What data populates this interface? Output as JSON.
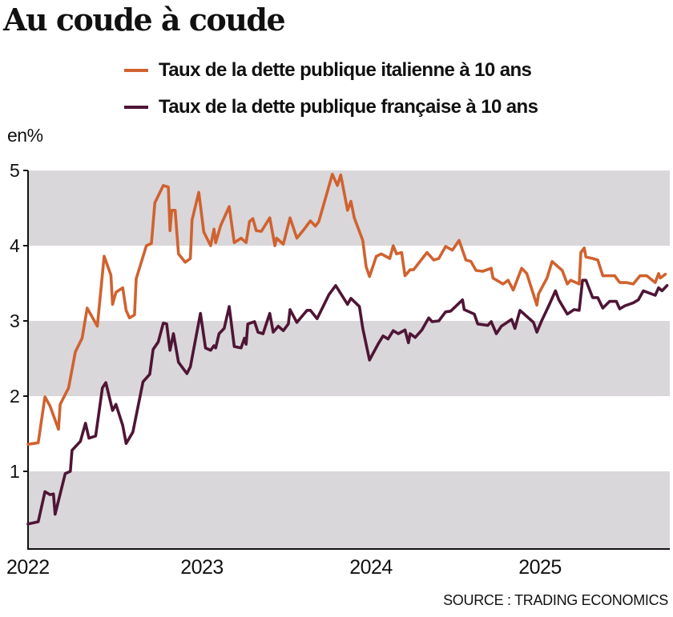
{
  "chart_data": {
    "type": "line",
    "title": "Au coude à coude",
    "ylabel": "en%",
    "ylim": [
      0,
      5
    ],
    "xlim": [
      2022,
      2025.78
    ],
    "yticks": [
      "1",
      "2",
      "3",
      "4",
      "5"
    ],
    "xticks": [
      "2022",
      "2023",
      "2024",
      "2025"
    ],
    "grid": "alternating horizontal bands",
    "legend_position": "top-right",
    "source": "SOURCE : TRADING ECONOMICS",
    "colors": {
      "italy": "#d0622f",
      "france": "#4f1535",
      "band": "#d9d7da"
    },
    "series": [
      {
        "name": "Taux de la dette publique italienne à 10 ans",
        "x": [
          2022.0,
          2022.06,
          2022.1,
          2022.13,
          2022.18,
          2022.19,
          2022.24,
          2022.28,
          2022.32,
          2022.35,
          2022.41,
          2022.45,
          2022.49,
          2022.5,
          2022.52,
          2022.56,
          2022.58,
          2022.6,
          2022.63,
          2022.64,
          2022.7,
          2022.73,
          2022.75,
          2022.8,
          2022.83,
          2022.84,
          2022.85,
          2022.87,
          2022.89,
          2022.93,
          2022.96,
          2022.97,
          2023.01,
          2023.04,
          2023.08,
          2023.1,
          2023.11,
          2023.14,
          2023.19,
          2023.22,
          2023.26,
          2023.29,
          2023.31,
          2023.33,
          2023.35,
          2023.38,
          2023.43,
          2023.46,
          2023.47,
          2023.51,
          2023.55,
          2023.59,
          2023.63,
          2023.67,
          2023.7,
          2023.72,
          2023.8,
          2023.83,
          2023.85,
          2023.89,
          2023.91,
          2023.93,
          2023.98,
          2024.0,
          2024.02,
          2024.06,
          2024.09,
          2024.14,
          2024.16,
          2024.18,
          2024.21,
          2024.23,
          2024.26,
          2024.28,
          2024.36,
          2024.4,
          2024.43,
          2024.47,
          2024.51,
          2024.55,
          2024.59,
          2024.62,
          2024.65,
          2024.69,
          2024.74,
          2024.75,
          2024.81,
          2024.84,
          2024.87,
          2024.92,
          2024.95,
          2025.01,
          2025.02,
          2025.07,
          2025.1,
          2025.16,
          2025.19,
          2025.21,
          2025.26,
          2025.27,
          2025.29,
          2025.3,
          2025.34,
          2025.37,
          2025.4,
          2025.47,
          2025.5,
          2025.54,
          2025.58,
          2025.62,
          2025.66,
          2025.71,
          2025.73,
          2025.74,
          2025.77
        ],
        "y": [
          1.36,
          1.38,
          1.99,
          1.87,
          1.56,
          1.89,
          2.11,
          2.59,
          2.77,
          3.17,
          2.93,
          3.86,
          3.61,
          3.22,
          3.38,
          3.44,
          3.14,
          3.04,
          3.08,
          3.56,
          4.0,
          4.03,
          4.57,
          4.8,
          4.78,
          4.2,
          4.47,
          4.47,
          3.89,
          3.78,
          3.83,
          4.34,
          4.71,
          4.18,
          4.0,
          4.22,
          4.04,
          4.27,
          4.52,
          4.04,
          4.1,
          4.04,
          4.32,
          4.36,
          4.2,
          4.19,
          4.37,
          4.0,
          4.1,
          4.02,
          4.37,
          4.1,
          4.21,
          4.33,
          4.26,
          4.32,
          4.95,
          4.8,
          4.94,
          4.47,
          4.59,
          4.37,
          4.07,
          3.72,
          3.59,
          3.86,
          3.89,
          3.83,
          4.0,
          3.89,
          3.91,
          3.6,
          3.68,
          3.68,
          3.91,
          3.81,
          3.83,
          3.99,
          3.94,
          4.07,
          3.81,
          3.79,
          3.67,
          3.66,
          3.7,
          3.57,
          3.49,
          3.54,
          3.41,
          3.7,
          3.63,
          3.21,
          3.36,
          3.57,
          3.79,
          3.67,
          3.49,
          3.54,
          3.49,
          3.91,
          3.97,
          3.85,
          3.83,
          3.81,
          3.6,
          3.6,
          3.51,
          3.51,
          3.49,
          3.6,
          3.6,
          3.51,
          3.63,
          3.57,
          3.62
        ]
      },
      {
        "name": "Taux de la dette publique française à 10 ans",
        "x": [
          2022.0,
          2022.06,
          2022.1,
          2022.13,
          2022.15,
          2022.16,
          2022.22,
          2022.25,
          2022.26,
          2022.31,
          2022.34,
          2022.36,
          2022.4,
          2022.44,
          2022.46,
          2022.5,
          2022.52,
          2022.56,
          2022.58,
          2022.62,
          2022.68,
          2022.72,
          2022.74,
          2022.77,
          2022.8,
          2022.82,
          2022.84,
          2022.86,
          2022.89,
          2022.94,
          2022.96,
          2023.02,
          2023.05,
          2023.08,
          2023.1,
          2023.11,
          2023.13,
          2023.16,
          2023.19,
          2023.22,
          2023.26,
          2023.28,
          2023.29,
          2023.3,
          2023.34,
          2023.36,
          2023.39,
          2023.43,
          2023.45,
          2023.48,
          2023.51,
          2023.54,
          2023.55,
          2023.59,
          2023.65,
          2023.67,
          2023.71,
          2023.78,
          2023.82,
          2023.89,
          2023.91,
          2023.96,
          2023.98,
          2024.02,
          2024.07,
          2024.1,
          2024.13,
          2024.16,
          2024.19,
          2024.23,
          2024.25,
          2024.26,
          2024.29,
          2024.33,
          2024.37,
          2024.39,
          2024.43,
          2024.47,
          2024.5,
          2024.57,
          2024.58,
          2024.64,
          2024.66,
          2024.72,
          2024.74,
          2024.77,
          2024.8,
          2024.86,
          2024.88,
          2024.91,
          2024.99,
          2025.01,
          2025.04,
          2025.08,
          2025.12,
          2025.14,
          2025.19,
          2025.23,
          2025.26,
          2025.28,
          2025.3,
          2025.34,
          2025.37,
          2025.4,
          2025.44,
          2025.48,
          2025.5,
          2025.53,
          2025.58,
          2025.61,
          2025.64,
          2025.71,
          2025.73,
          2025.75,
          2025.78
        ],
        "y": [
          0.3,
          0.33,
          0.73,
          0.69,
          0.7,
          0.43,
          0.97,
          1.0,
          1.28,
          1.4,
          1.64,
          1.44,
          1.47,
          2.11,
          2.18,
          1.81,
          1.89,
          1.61,
          1.37,
          1.52,
          2.19,
          2.29,
          2.62,
          2.72,
          2.97,
          2.96,
          2.61,
          2.83,
          2.45,
          2.3,
          2.39,
          3.1,
          2.64,
          2.61,
          2.67,
          2.64,
          2.83,
          2.9,
          3.19,
          2.66,
          2.64,
          2.77,
          2.69,
          2.96,
          2.99,
          2.85,
          2.83,
          3.1,
          2.85,
          2.93,
          2.87,
          2.96,
          3.15,
          2.98,
          3.14,
          3.14,
          3.03,
          3.35,
          3.47,
          3.22,
          3.3,
          3.19,
          2.9,
          2.48,
          2.69,
          2.8,
          2.76,
          2.87,
          2.83,
          2.88,
          2.71,
          2.83,
          2.78,
          2.88,
          3.04,
          2.99,
          3.0,
          3.12,
          3.13,
          3.28,
          3.15,
          3.09,
          2.96,
          2.94,
          2.99,
          2.83,
          2.93,
          3.02,
          2.9,
          3.14,
          2.98,
          2.85,
          3.01,
          3.2,
          3.4,
          3.28,
          3.09,
          3.15,
          3.14,
          3.54,
          3.54,
          3.31,
          3.31,
          3.17,
          3.26,
          3.26,
          3.16,
          3.2,
          3.24,
          3.28,
          3.4,
          3.34,
          3.44,
          3.4,
          3.47
        ]
      }
    ]
  }
}
